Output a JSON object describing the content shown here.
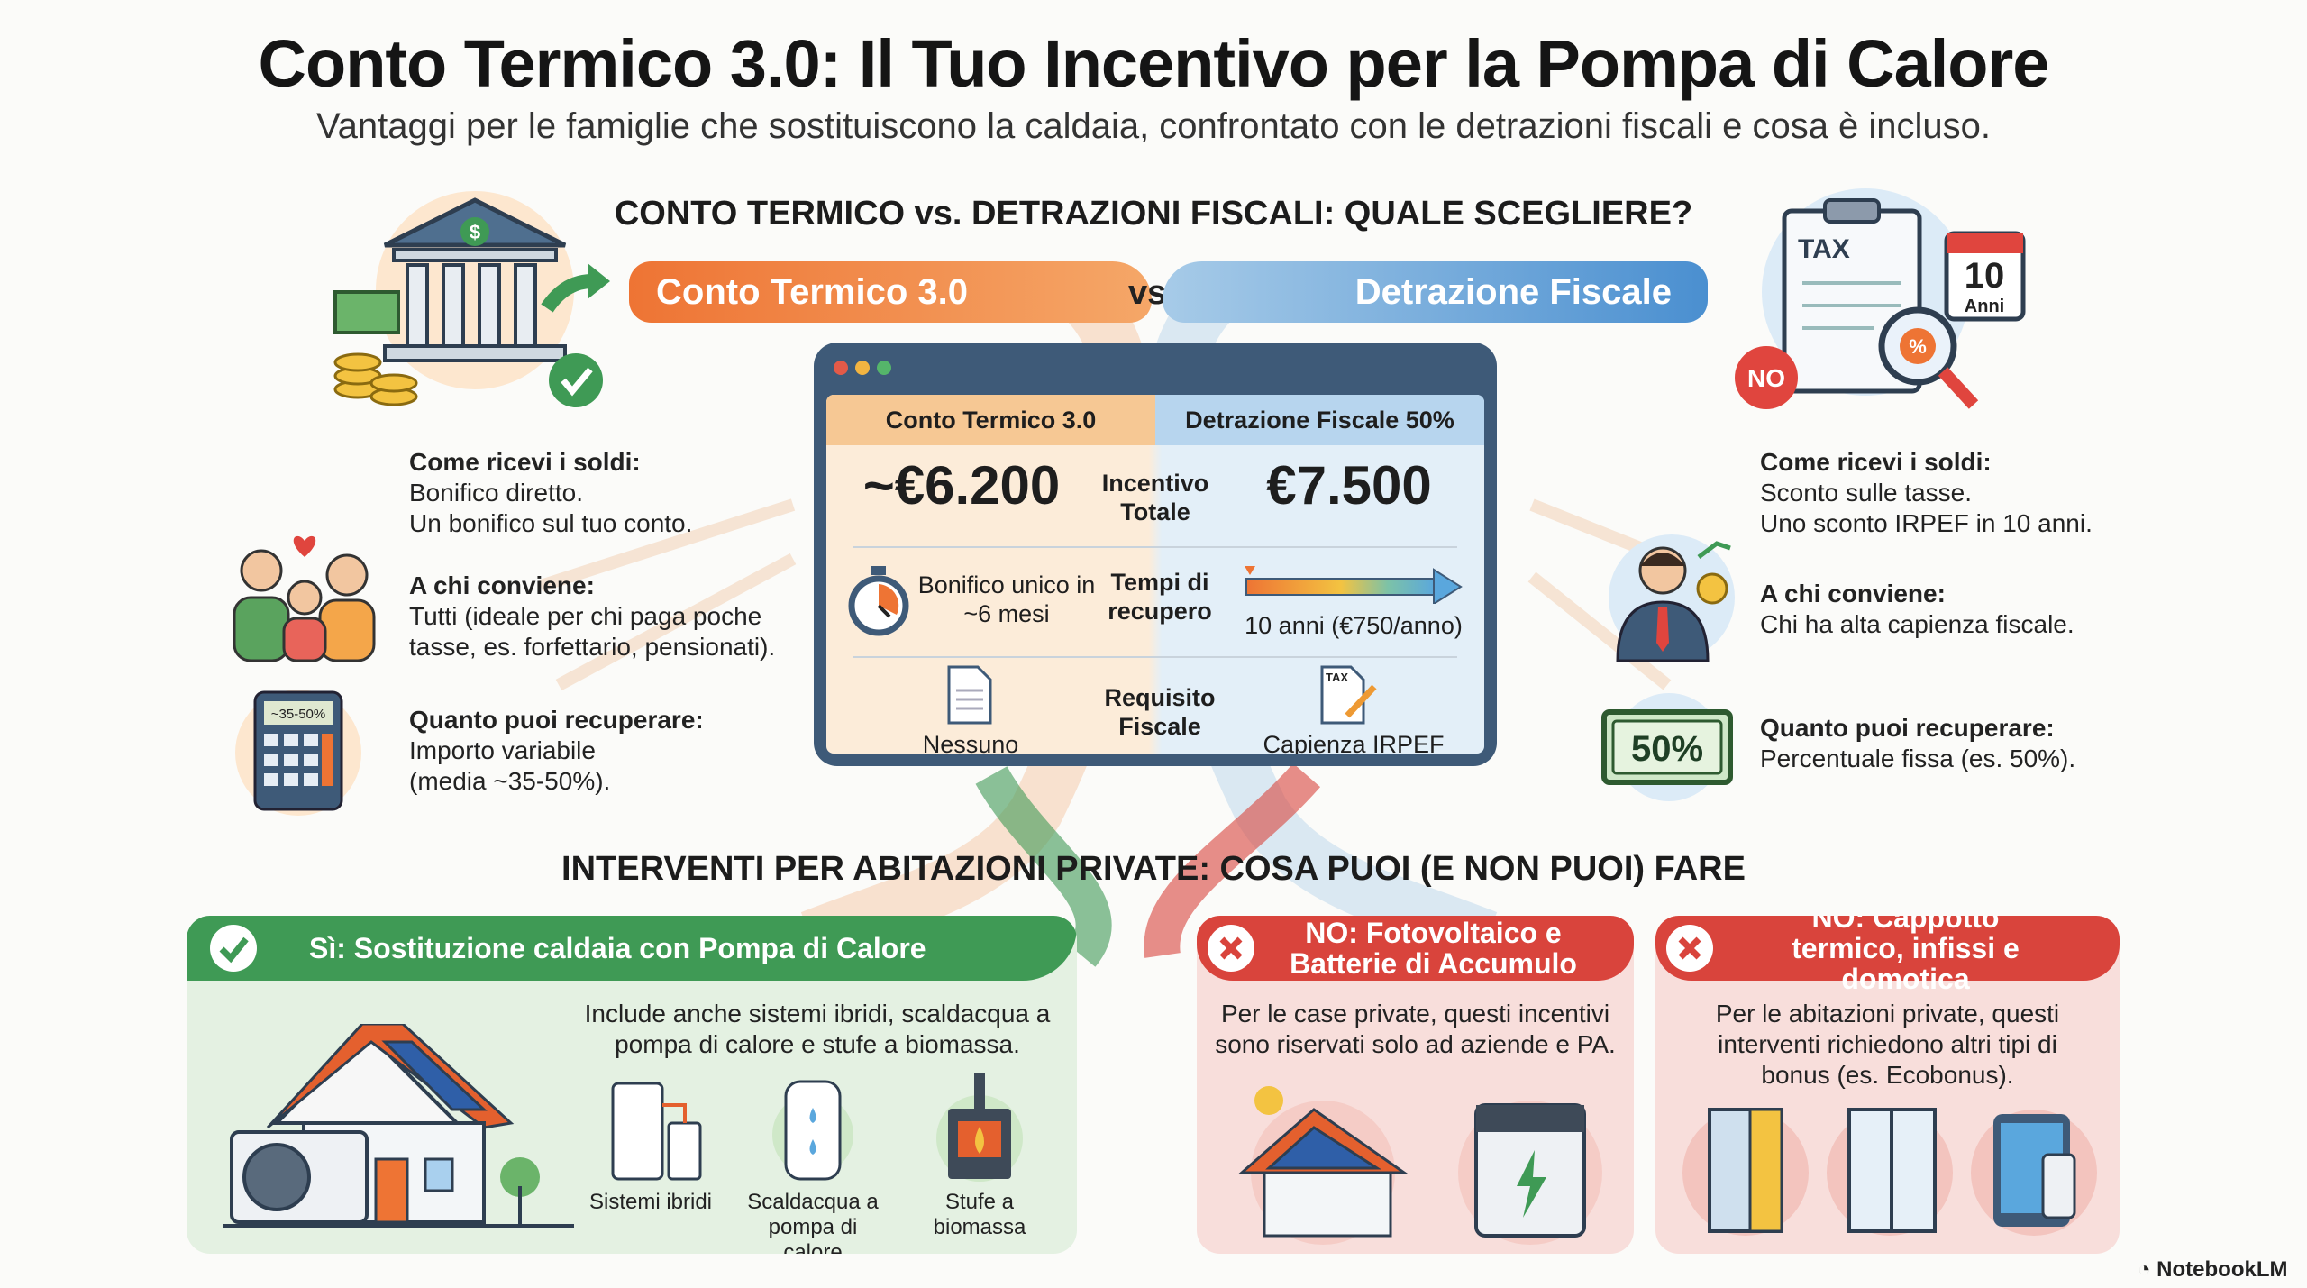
{
  "header": {
    "title": "Conto Termico 3.0: Il Tuo Incentivo per la Pompa di Calore",
    "subtitle": "Vantaggi per le famiglie che sostituiscono la caldaia, confrontato con le detrazioni fiscali e cosa è incluso."
  },
  "comparison": {
    "heading": "CONTO TERMICO vs. DETRAZIONI FISCALI: QUALE SCEGLIERE?",
    "left_ribbon": "Conto Termico 3.0",
    "vs": "vs.",
    "right_ribbon": "Detrazione Fiscale",
    "colors": {
      "orange": "#f0803c",
      "blue": "#4a90c8"
    },
    "left_info": [
      {
        "title": "Come ricevi i soldi:",
        "lines": [
          "Bonifico diretto.",
          "Un bonifico sul tuo conto."
        ]
      },
      {
        "title": "A chi conviene:",
        "lines": [
          "Tutti (ideale per chi paga poche",
          "tasse, es. forfettario, pensionati)."
        ]
      },
      {
        "title": "Quanto puoi recuperare:",
        "lines": [
          "Importo variabile",
          "(media ~35-50%)."
        ]
      }
    ],
    "right_info": [
      {
        "title": "Come ricevi i soldi:",
        "lines": [
          "Sconto sulle tasse.",
          "Uno sconto IRPEF in 10 anni."
        ]
      },
      {
        "title": "A chi conviene:",
        "lines": [
          "Chi ha alta capienza fiscale."
        ]
      },
      {
        "title": "Quanto puoi recuperare:",
        "lines": [
          "Percentuale fissa (es. 50%)."
        ]
      }
    ],
    "icon_labels": {
      "calculator": "~35-50%",
      "tax_form": "TAX",
      "calendar_num": "10",
      "calendar_text": "Anni",
      "no_badge": "NO",
      "percent_badge": "50%",
      "small_tax": "TAX"
    },
    "table": {
      "left_header": "Conto Termico 3.0",
      "right_header": "Detrazione Fiscale 50%",
      "rows": [
        {
          "label": "Incentivo Totale",
          "left": "~€6.200",
          "right": "€7.500"
        },
        {
          "label": "Tempi di recupero",
          "left": "Bonifico unico in ~6 mesi",
          "right": "10 anni (€750/anno)"
        },
        {
          "label": "Requisito Fiscale",
          "left": "Nessuno",
          "right": "Capienza IRPEF"
        }
      ]
    }
  },
  "interventions": {
    "heading": "INTERVENTI PER ABITAZIONI PRIVATE: COSA PUOI (E NON PUOI) FARE",
    "yes": {
      "title": "Sì: Sostituzione caldaia con Pompa di Calore",
      "text": "Include anche sistemi ibridi, scaldacqua a pompa di calore e stufe a biomassa.",
      "items": [
        "Sistemi ibridi",
        "Scaldacqua a pompa di calore",
        "Stufe a biomassa"
      ],
      "color": "#3f9a55"
    },
    "no1": {
      "title": "NO: Fotovoltaico e Batterie di Accumulo",
      "text": "Per le case private, questi incentivi sono riservati solo ad aziende e PA.",
      "color": "#d9443c"
    },
    "no2": {
      "title": "NO: Cappotto termico, infissi e domotica",
      "text": "Per le abitazioni private, questi interventi richiedono altri tipi di bonus (es. Ecobonus).",
      "color": "#d9443c"
    }
  },
  "footer": {
    "brand": "NotebookLM"
  }
}
